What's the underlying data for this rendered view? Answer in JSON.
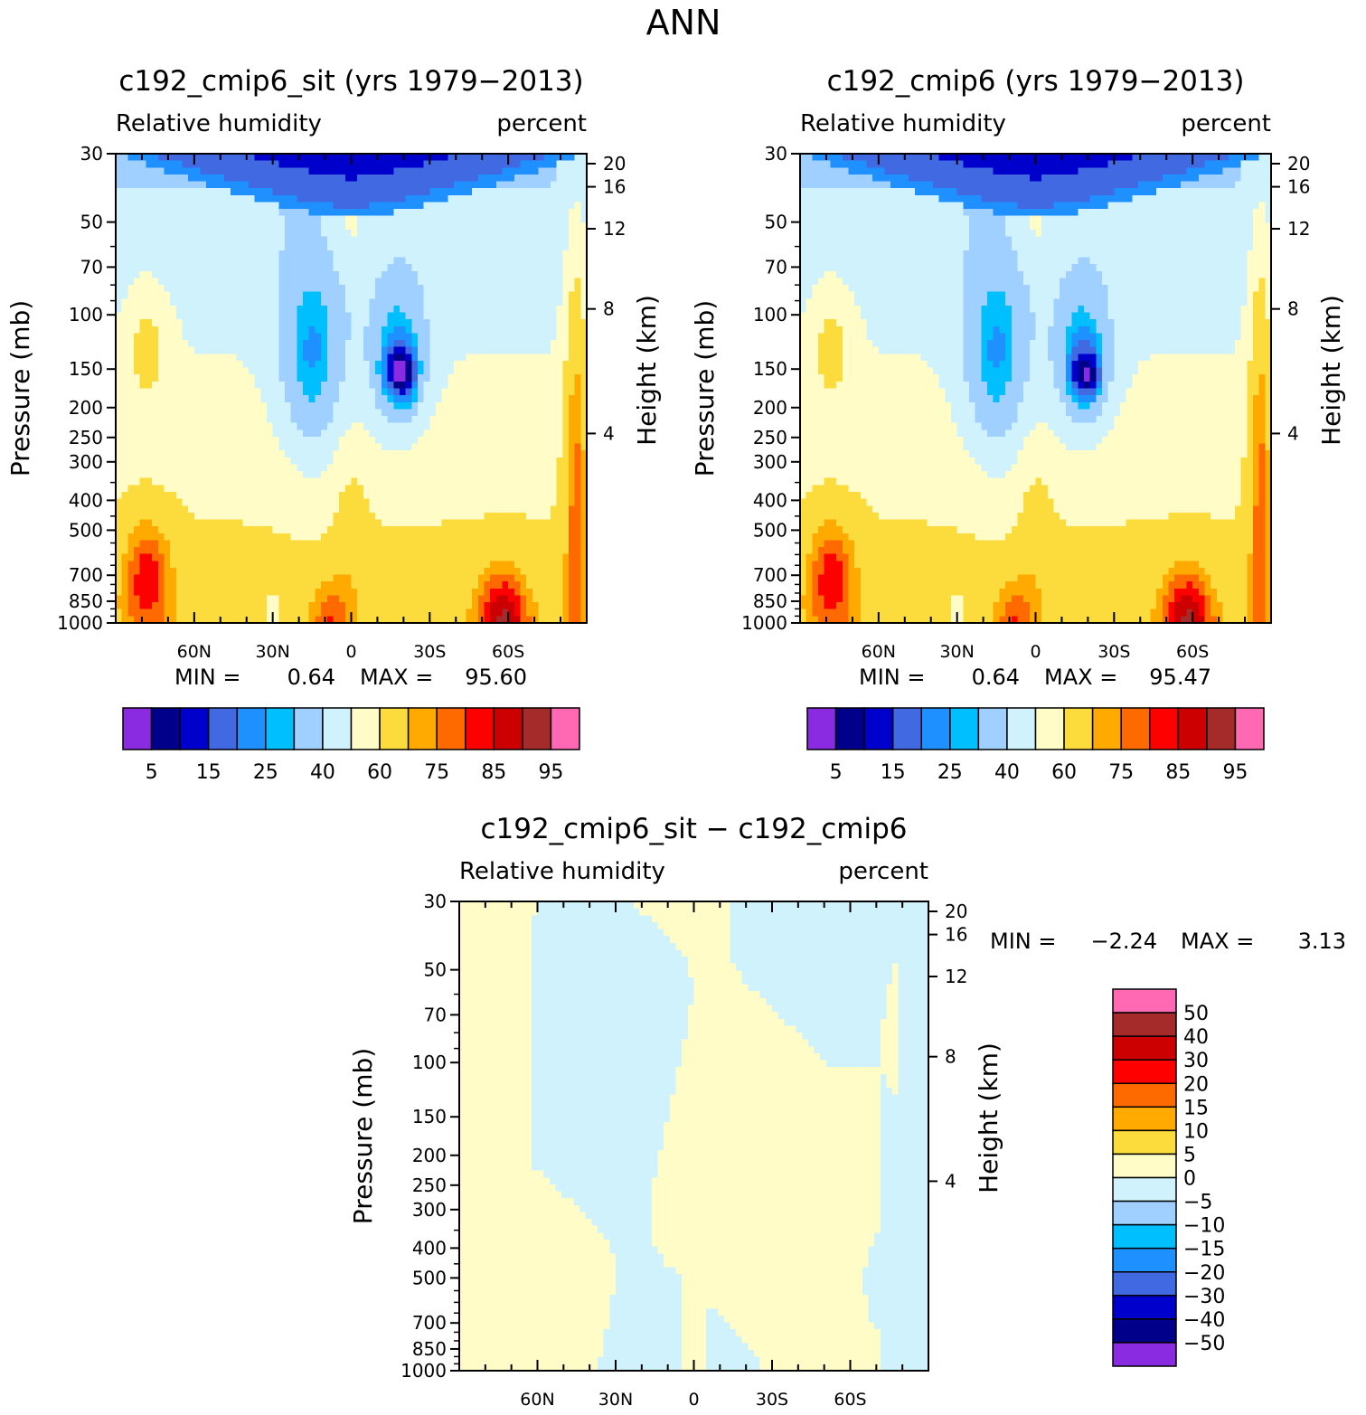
{
  "figure_title": "ANN",
  "chart_data": [
    {
      "type": "heatmap",
      "title": "c192_cmip6_sit (yrs 1979−2013)",
      "left_label": "Relative humidity",
      "right_label": "percent",
      "ylabel": "Pressure (mb)",
      "ylabel_right": "Height (km)",
      "x_ticks": [
        "60N",
        "30N",
        "0",
        "30S",
        "60S"
      ],
      "y_ticks": [
        "30",
        "50",
        "70",
        "100",
        "150",
        "200",
        "250",
        "300",
        "400",
        "500",
        "700",
        "850",
        "1000"
      ],
      "height_ticks": [
        "20",
        "16",
        "12",
        "8",
        "4"
      ],
      "stats": {
        "min_label": "MIN =",
        "min": "0.64",
        "max_label": "MAX =",
        "max": "95.60"
      },
      "colorbar_labels": [
        "5",
        "15",
        "25",
        "40",
        "60",
        "75",
        "85",
        "95"
      ]
    },
    {
      "type": "heatmap",
      "title": "c192_cmip6 (yrs 1979−2013)",
      "left_label": "Relative humidity",
      "right_label": "percent",
      "ylabel": "Pressure (mb)",
      "ylabel_right": "Height (km)",
      "x_ticks": [
        "60N",
        "30N",
        "0",
        "30S",
        "60S"
      ],
      "y_ticks": [
        "30",
        "50",
        "70",
        "100",
        "150",
        "200",
        "250",
        "300",
        "400",
        "500",
        "700",
        "850",
        "1000"
      ],
      "height_ticks": [
        "20",
        "16",
        "12",
        "8",
        "4"
      ],
      "stats": {
        "min_label": "MIN =",
        "min": "0.64",
        "max_label": "MAX =",
        "max": "95.47"
      },
      "colorbar_labels": [
        "5",
        "15",
        "25",
        "40",
        "60",
        "75",
        "85",
        "95"
      ]
    },
    {
      "type": "heatmap",
      "title": "c192_cmip6_sit − c192_cmip6",
      "left_label": "Relative humidity",
      "right_label": "percent",
      "ylabel": "Pressure (mb)",
      "ylabel_right": "Height (km)",
      "x_ticks": [
        "60N",
        "30N",
        "0",
        "30S",
        "60S"
      ],
      "y_ticks": [
        "30",
        "50",
        "70",
        "100",
        "150",
        "200",
        "250",
        "300",
        "400",
        "500",
        "700",
        "850",
        "1000"
      ],
      "height_ticks": [
        "20",
        "16",
        "12",
        "8",
        "4"
      ],
      "stats": {
        "min_label": "MIN =",
        "min": "−2.24",
        "max_label": "MAX =",
        "max": "3.13"
      },
      "colorbar_labels": [
        "50",
        "40",
        "30",
        "20",
        "15",
        "10",
        "5",
        "0",
        "−5",
        "−10",
        "−15",
        "−20",
        "−30",
        "−40",
        "−50"
      ]
    }
  ],
  "colors": {
    "abs_palette": [
      "#8a2be2",
      "#00008b",
      "#0000cd",
      "#4169e1",
      "#1e90ff",
      "#00bfff",
      "#a0d0ff",
      "#d0f2fc",
      "#fffcc8",
      "#fcdc3c",
      "#ffaa00",
      "#ff6a00",
      "#ff0000",
      "#cc0000",
      "#a52a2a",
      "#ff69b4"
    ],
    "diff_palette": [
      "#ff69b4",
      "#a52a2a",
      "#cc0000",
      "#ff0000",
      "#ff6a00",
      "#ffaa00",
      "#fcdc3c",
      "#fffcc8",
      "#d0f2fc",
      "#a0d0ff",
      "#00bfff",
      "#1e90ff",
      "#4169e1",
      "#0000cd",
      "#00008b",
      "#8a2be2"
    ]
  }
}
